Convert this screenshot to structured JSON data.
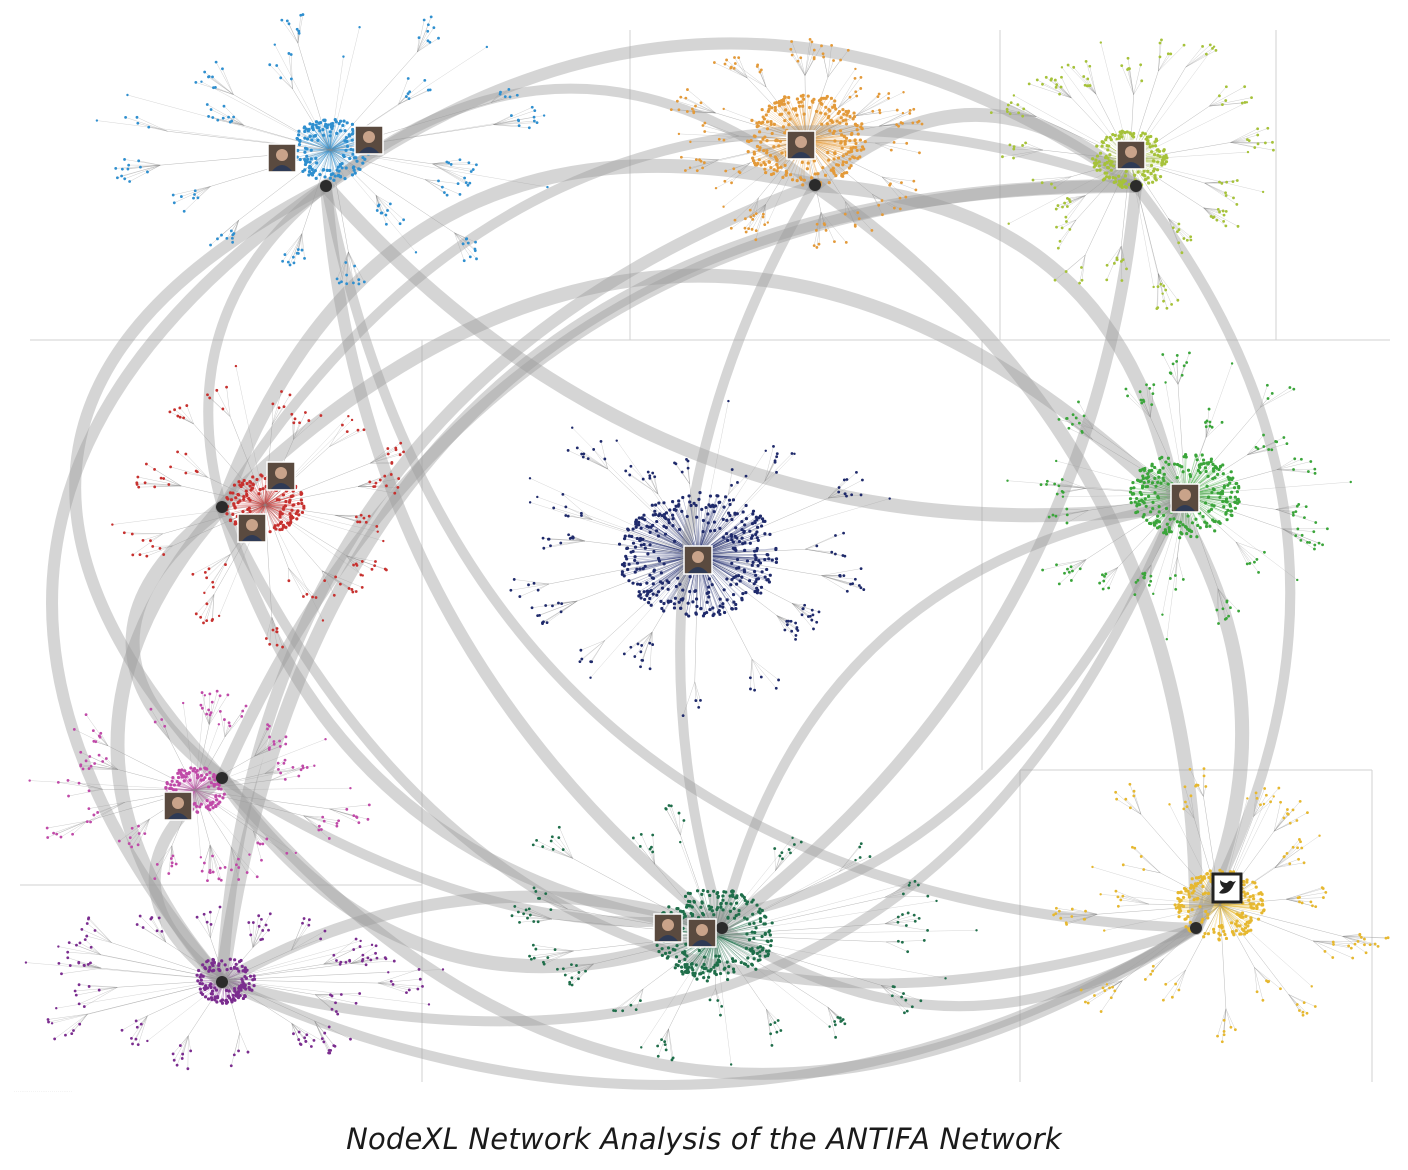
{
  "caption": "NodeXL Network Analysis of the ANTIFA Network",
  "colors": {
    "background": "#ffffff",
    "inter_group_edge": "#9a9a9a",
    "intra_edge": "#8c8c8c",
    "divider": "#d2d2d2"
  },
  "groups": [
    {
      "id": "g1",
      "color": "#2f8fcf",
      "avatar_icon": "avatar-photo-icon"
    },
    {
      "id": "g2",
      "color": "#e39a3a",
      "avatar_icon": "avatar-photo-icon"
    },
    {
      "id": "g3",
      "color": "#a6c23a",
      "avatar_icon": "avatar-photo-icon"
    },
    {
      "id": "g4",
      "color": "#c7312f",
      "avatar_icon": "avatar-photo-icon"
    },
    {
      "id": "g5",
      "color": "#1f2a6b",
      "avatar_icon": "avatar-photo-icon"
    },
    {
      "id": "g6",
      "color": "#3aa53a",
      "avatar_icon": "avatar-photo-icon"
    },
    {
      "id": "g7",
      "color": "#c04aa8",
      "avatar_icon": "avatar-photo-icon"
    },
    {
      "id": "g8",
      "color": "#1f6e4a",
      "avatar_icon": "avatar-photo-icon"
    },
    {
      "id": "g9",
      "color": "#7b2d8f",
      "avatar_icon": "avatar-photo-icon"
    },
    {
      "id": "g10",
      "color": "#e6b830",
      "avatar_icon": "bird-logo-icon"
    }
  ]
}
